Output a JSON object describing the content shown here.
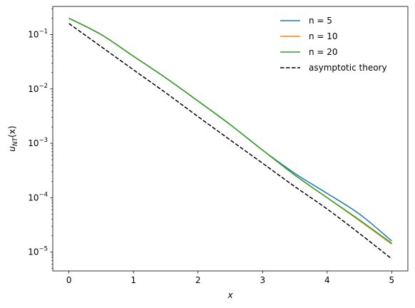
{
  "chart_data": {
    "type": "line",
    "xlabel": "x",
    "ylabel": "u_NT(x)",
    "ylabel_main": "u",
    "ylabel_sub": "NT",
    "ylabel_tail": "(x)",
    "x_scale": "linear",
    "y_scale": "log",
    "xlim": [
      -0.25,
      5.25
    ],
    "ylim": [
      4.5e-06,
      0.33
    ],
    "grid": false,
    "legend_position": "upper-right",
    "x_ticks": [
      0,
      1,
      2,
      3,
      4,
      5
    ],
    "x_tick_labels": [
      "0",
      "1",
      "2",
      "3",
      "4",
      "5"
    ],
    "y_ticks": [
      1e-05,
      0.0001,
      0.001,
      0.01,
      0.1
    ],
    "y_tick_labels": [
      {
        "base": "10",
        "exp": "−5"
      },
      {
        "base": "10",
        "exp": "−4"
      },
      {
        "base": "10",
        "exp": "−3"
      },
      {
        "base": "10",
        "exp": "−2"
      },
      {
        "base": "10",
        "exp": "−1"
      }
    ],
    "x": [
      0,
      0.5,
      1,
      1.5,
      2,
      2.5,
      3,
      3.5,
      4,
      4.5,
      5
    ],
    "series": [
      {
        "name": "n = 5",
        "color": "#1f77b4",
        "dash": "solid",
        "values": [
          0.2,
          0.1,
          0.04,
          0.016,
          0.006,
          0.0022,
          0.00075,
          0.00028,
          0.00012,
          5e-05,
          1.6e-05
        ]
      },
      {
        "name": "n = 10",
        "color": "#ff7f0e",
        "dash": "solid",
        "values": [
          0.2,
          0.1,
          0.04,
          0.016,
          0.006,
          0.0022,
          0.00075,
          0.00026,
          0.0001,
          3.8e-05,
          1.4e-05
        ]
      },
      {
        "name": "n = 20",
        "color": "#2ca02c",
        "dash": "solid",
        "values": [
          0.2,
          0.1,
          0.04,
          0.016,
          0.006,
          0.0022,
          0.00075,
          0.00026,
          0.0001,
          3.9e-05,
          1.45e-05
        ]
      },
      {
        "name": "asymptotic theory",
        "color": "#000000",
        "dash": "dashed",
        "values": [
          0.16,
          0.06,
          0.0225,
          0.0085,
          0.0031,
          0.00115,
          0.00043,
          0.00016,
          6.2e-05,
          2.2e-05,
          7.5e-06
        ]
      }
    ]
  }
}
